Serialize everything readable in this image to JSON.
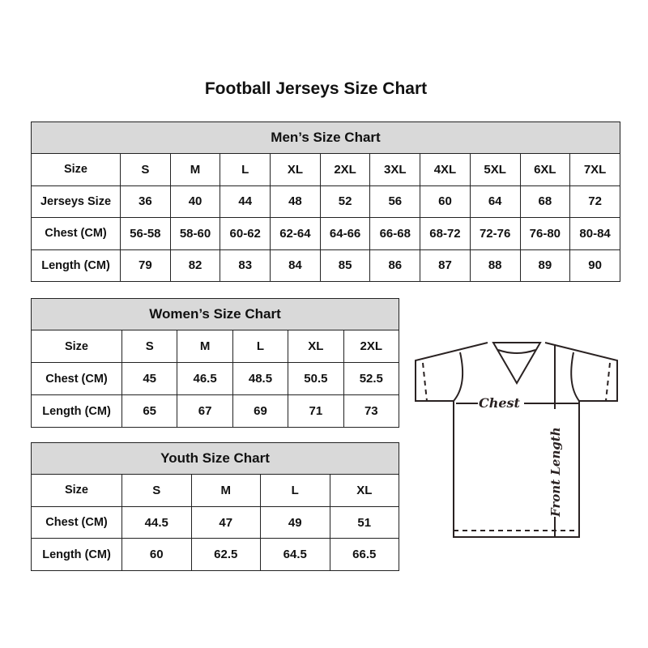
{
  "title": "Football Jerseys Size Chart",
  "men": {
    "caption": "Men’s Size Chart",
    "rows": [
      [
        "Size",
        "S",
        "M",
        "L",
        "XL",
        "2XL",
        "3XL",
        "4XL",
        "5XL",
        "6XL",
        "7XL"
      ],
      [
        "Jerseys Size",
        "36",
        "40",
        "44",
        "48",
        "52",
        "56",
        "60",
        "64",
        "68",
        "72"
      ],
      [
        "Chest (CM)",
        "56-58",
        "58-60",
        "60-62",
        "62-64",
        "64-66",
        "66-68",
        "68-72",
        "72-76",
        "76-80",
        "80-84"
      ],
      [
        "Length (CM)",
        "79",
        "82",
        "83",
        "84",
        "85",
        "86",
        "87",
        "88",
        "89",
        "90"
      ]
    ]
  },
  "women": {
    "caption": "Women’s Size Chart",
    "rows": [
      [
        "Size",
        "S",
        "M",
        "L",
        "XL",
        "2XL"
      ],
      [
        "Chest (CM)",
        "45",
        "46.5",
        "48.5",
        "50.5",
        "52.5"
      ],
      [
        "Length (CM)",
        "65",
        "67",
        "69",
        "71",
        "73"
      ]
    ]
  },
  "youth": {
    "caption": "Youth Size Chart",
    "rows": [
      [
        "Size",
        "S",
        "M",
        "L",
        "XL"
      ],
      [
        "Chest (CM)",
        "44.5",
        "47",
        "49",
        "51"
      ],
      [
        "Length (CM)",
        "60",
        "62.5",
        "64.5",
        "66.5"
      ]
    ]
  },
  "diagram": {
    "chest_label": "Chest",
    "length_label": "Front Length"
  }
}
